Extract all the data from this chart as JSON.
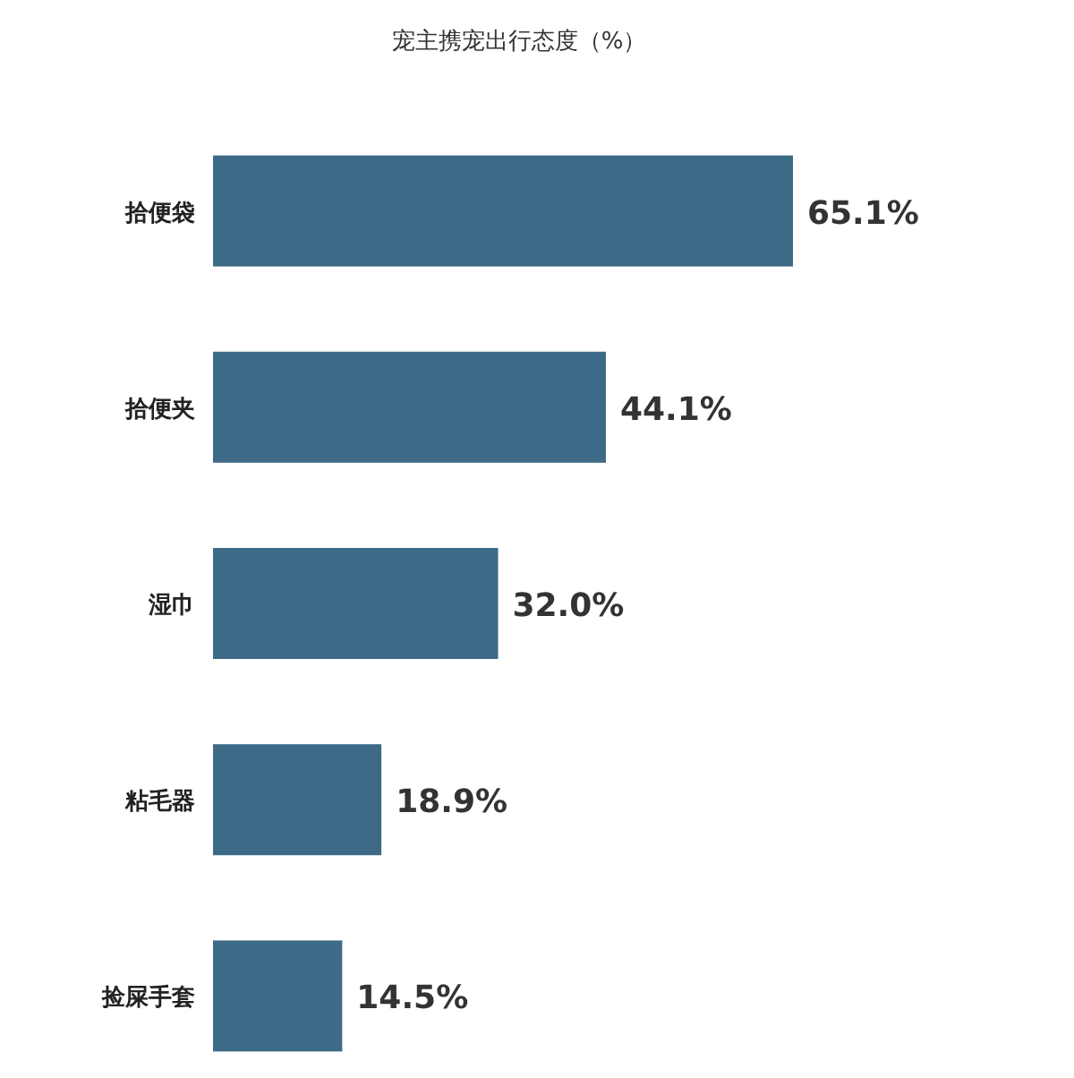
{
  "chart_data": {
    "type": "bar",
    "orientation": "horizontal",
    "title": "宠主携宠出行态度（%）",
    "categories": [
      "拾便袋",
      "拾便夹",
      "湿巾",
      "粘毛器",
      "捡屎手套"
    ],
    "values": [
      65.1,
      44.1,
      32.0,
      18.9,
      14.5
    ],
    "value_labels": [
      "65.1%",
      "44.1%",
      "32.0%",
      "18.9%",
      "14.5%"
    ],
    "color": "#3d6a87"
  }
}
